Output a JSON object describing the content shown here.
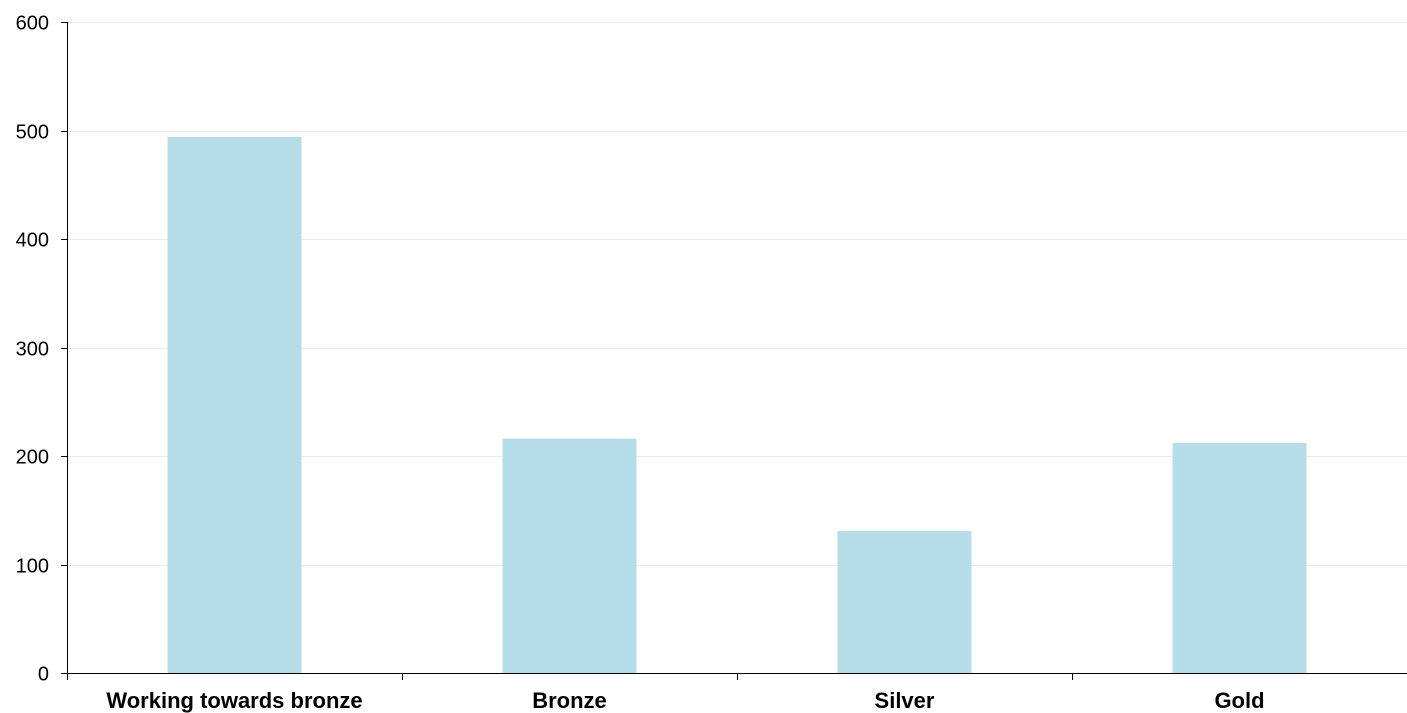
{
  "chart_data": {
    "type": "bar",
    "title": "",
    "xlabel": "",
    "ylabel": "",
    "categories": [
      "Working towards bronze",
      "Bronze",
      "Silver",
      "Gold"
    ],
    "values": [
      494,
      216,
      131,
      212
    ],
    "ylim": [
      0,
      600
    ],
    "yticks": [
      0,
      100,
      200,
      300,
      400,
      500,
      600
    ],
    "grid": true,
    "legend": "none",
    "bar_color": "#b5dce7",
    "axis_color": "#000000",
    "grid_color": "#ebebeb"
  }
}
